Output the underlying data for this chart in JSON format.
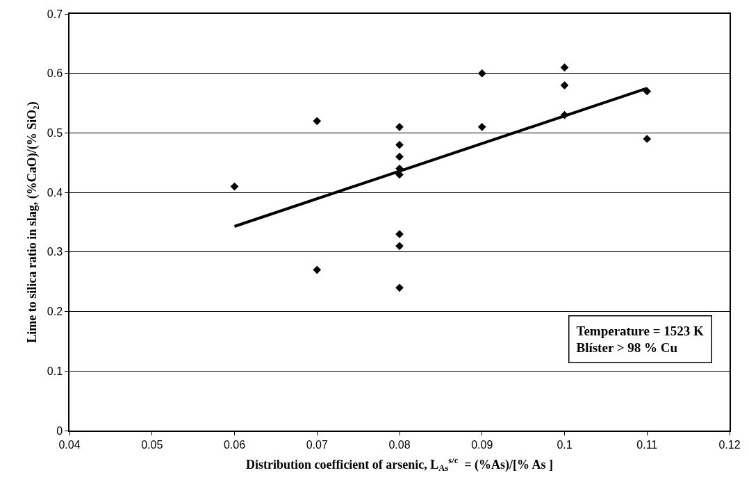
{
  "chart_data": {
    "type": "scatter",
    "xlabel": "Distribution coefficient of arsenic, L$_{As}$$^{s/c}$  = (%As)/[% As ]",
    "ylabel": "Lime to silica ratio in slag, (%CaO)/(% SiO₂)",
    "series": [
      {
        "color": "#000000",
        "marker": "diamond",
        "x": [
          0.06,
          0.07,
          0.07,
          0.08,
          0.08,
          0.08,
          0.08,
          0.08,
          0.08,
          0.08,
          0.08,
          0.09,
          0.09,
          0.1,
          0.1,
          0.1,
          0.11,
          0.11
        ],
        "values": [
          0.41,
          0.52,
          0.27,
          0.51,
          0.48,
          0.46,
          0.44,
          0.43,
          0.33,
          0.31,
          0.24,
          0.6,
          0.51,
          0.61,
          0.58,
          0.53,
          0.57,
          0.49
        ]
      },
      {
        "type": "line",
        "color": "#000000",
        "marker": "none",
        "line_style": "solid",
        "x": [
          0.06,
          0.11
        ],
        "values": [
          0.343,
          0.575
        ]
      }
    ],
    "xlim": [
      0.04,
      0.12
    ],
    "xticks": [
      0.04,
      0.05,
      0.06,
      0.07,
      0.08,
      0.09,
      0.1,
      0.11,
      0.12
    ],
    "ylim": [
      0,
      0.7
    ],
    "yticks": [
      0,
      0.1,
      0.2,
      0.3,
      0.4,
      0.5,
      0.6,
      0.7
    ],
    "grid": "y",
    "annotations": [
      "Temperature = 1523 K\nBlíster > 98 % Cu"
    ]
  }
}
